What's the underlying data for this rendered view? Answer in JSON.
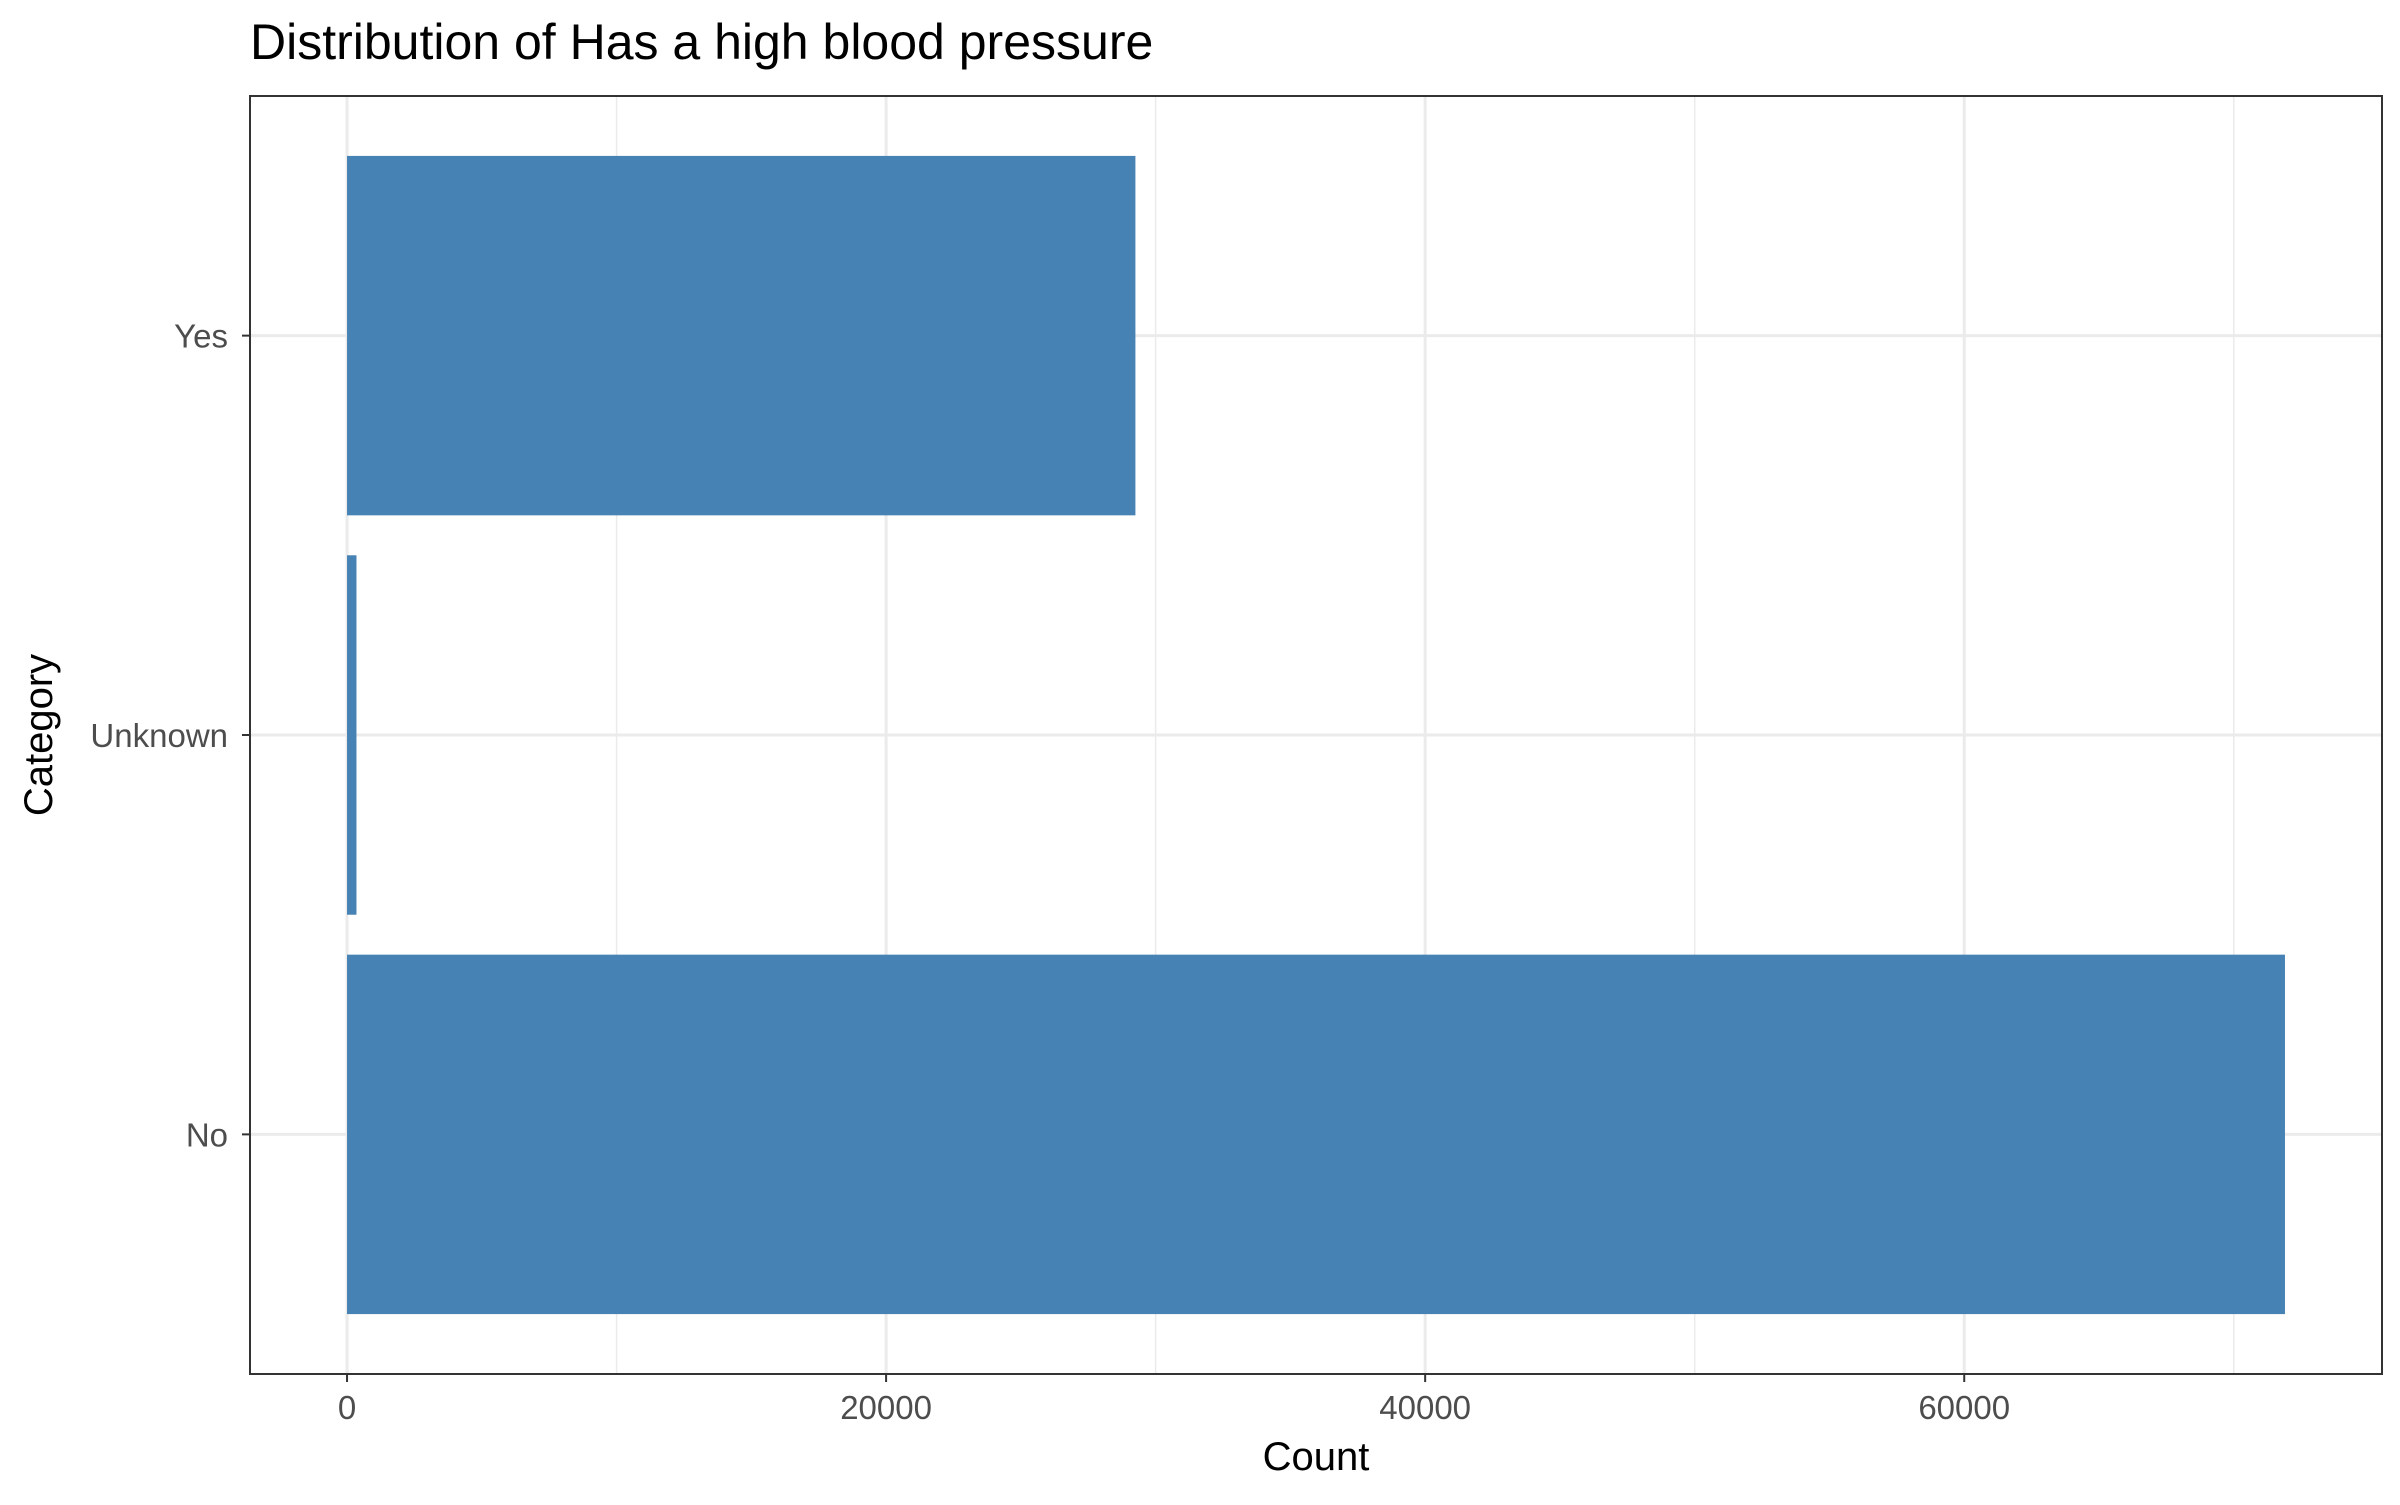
{
  "chart_data": {
    "type": "bar",
    "orientation": "horizontal",
    "title": "Distribution of Has a high blood pressure",
    "xlabel": "Count",
    "ylabel": "Category",
    "categories": [
      "No",
      "Unknown",
      "Yes"
    ],
    "values": [
      71900,
      350,
      29250
    ],
    "xlim": [
      -3600,
      75500
    ],
    "xticks": [
      0,
      20000,
      40000,
      60000
    ],
    "xtick_labels": [
      "0",
      "20000",
      "40000",
      "60000"
    ],
    "grid": true,
    "legend": "none",
    "colors": {
      "bar": "#4682B4",
      "grid": "#ebebeb",
      "panel_border": "#333333",
      "background": "#ffffff"
    }
  }
}
